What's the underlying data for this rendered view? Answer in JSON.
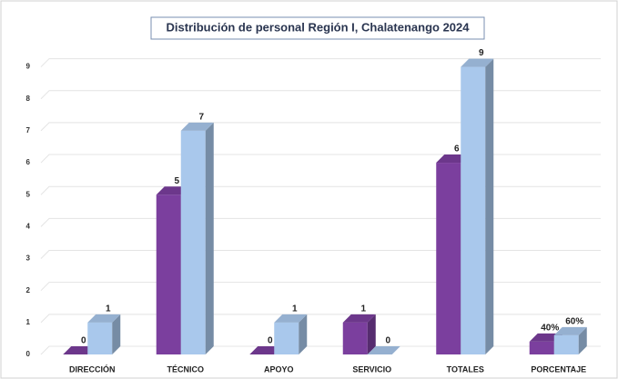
{
  "chart_data": {
    "type": "bar3d",
    "title": "Distribución de personal Región I, Chalatenango 2024",
    "categories": [
      "DIRECCIÓN",
      "TÉCNICO",
      "APOYO",
      "SERVICIO",
      "TOTALES",
      "PORCENTAJE"
    ],
    "series": [
      {
        "color": "#7b3f9e",
        "values": [
          0,
          5,
          0,
          1,
          6,
          0.4
        ],
        "value_labels": [
          "0",
          "5",
          "0",
          "1",
          "6",
          "40%"
        ]
      },
      {
        "color": "#a9c8ec",
        "values": [
          1,
          7,
          1,
          0,
          9,
          0.6
        ],
        "value_labels": [
          "1",
          "7",
          "1",
          "0",
          "9",
          "60%"
        ]
      }
    ],
    "ylim": [
      0,
      9.5
    ],
    "yticks": [
      0,
      1,
      2,
      3,
      4,
      5,
      6,
      7,
      8,
      9
    ],
    "grid": true
  }
}
